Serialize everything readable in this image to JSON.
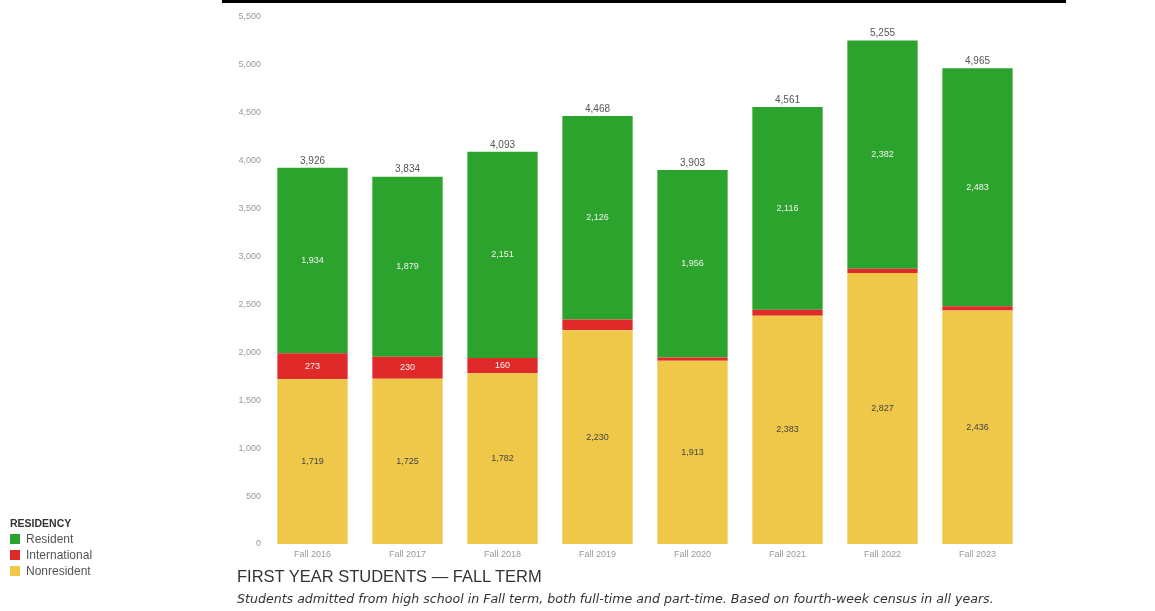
{
  "chart_data": {
    "type": "bar",
    "title": "FIRST YEAR STUDENTS — FALL TERM",
    "subtitle": "Students admitted from high school in Fall term, both full-time and part-time. Based on fourth-week census in all years.",
    "legend_title": "RESIDENCY",
    "legend": "bottom left",
    "stacked": true,
    "categories": [
      "Fall 2016",
      "Fall 2017",
      "Fall 2018",
      "Fall 2019",
      "Fall 2020",
      "Fall 2021",
      "Fall 2022",
      "Fall 2023"
    ],
    "series": [
      {
        "name": "Nonresident",
        "color": "#efc84a",
        "values": [
          1719,
          1725,
          1782,
          2230,
          1913,
          2383,
          2827,
          2436
        ],
        "value_labels": [
          "1,719",
          "1,725",
          "1,782",
          "2,230",
          "1,913",
          "2,383",
          "2,827",
          "2,436"
        ]
      },
      {
        "name": "International",
        "color": "#e02a2a",
        "values": [
          273,
          230,
          160,
          112,
          34,
          62,
          46,
          46
        ],
        "value_labels": [
          "273",
          "230",
          "160",
          null,
          null,
          null,
          null,
          null
        ]
      },
      {
        "name": "Resident",
        "color": "#2ca32c",
        "values": [
          1934,
          1879,
          2151,
          2126,
          1956,
          2116,
          2382,
          2483
        ],
        "value_labels": [
          "1,934",
          "1,879",
          "2,151",
          "2,126",
          "1,956",
          "2,116",
          "2,382",
          "2,483"
        ]
      }
    ],
    "totals": [
      "3,926",
      "3,834",
      "4,093",
      "4,468",
      "3,903",
      "4,561",
      "5,255",
      "4,965"
    ],
    "ylim": [
      0,
      5500
    ],
    "yticks": [
      0,
      500,
      {
        "value": 1000,
        "label": "1,000"
      },
      {
        "value": 1500,
        "label": "1,500"
      },
      {
        "value": 2000,
        "label": "2,000"
      },
      {
        "value": 2500,
        "label": "2,500"
      },
      {
        "value": 3000,
        "label": "3,000"
      },
      {
        "value": 3500,
        "label": "3,500"
      },
      {
        "value": 4000,
        "label": "4,000"
      },
      {
        "value": 4500,
        "label": "4,500"
      },
      {
        "value": 5000,
        "label": "5,000"
      },
      {
        "value": 5500,
        "label": "5,500"
      }
    ]
  }
}
